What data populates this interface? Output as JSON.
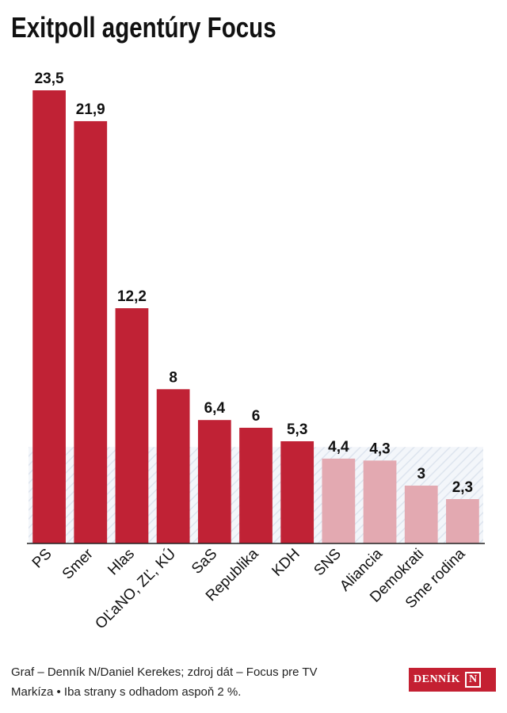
{
  "title": "Exitpoll agentúry Focus",
  "chart_data": {
    "type": "bar",
    "title": "Exitpoll agentúry Focus",
    "categories": [
      "PS",
      "Smer",
      "Hlas",
      "OĽaNO, ZĽ, KÚ",
      "SaS",
      "Republika",
      "KDH",
      "SNS",
      "Aliancia",
      "Demokrati",
      "Sme rodina"
    ],
    "values": [
      23.5,
      21.9,
      12.2,
      8,
      6.4,
      6,
      5.3,
      4.4,
      4.3,
      3,
      2.3
    ],
    "value_labels": [
      "23,5",
      "21,9",
      "12,2",
      "8",
      "6,4",
      "6",
      "5,3",
      "4,4",
      "4,3",
      "3",
      "2,3"
    ],
    "below_threshold": [
      false,
      false,
      false,
      false,
      false,
      false,
      false,
      true,
      true,
      true,
      true
    ],
    "threshold": 5,
    "ylim": [
      0,
      23.5
    ],
    "grid": false,
    "colors": {
      "bar": "#c02235",
      "bar_below": "#e3a9b1",
      "threshold_band": "#e6ecf3"
    }
  },
  "footer": {
    "line1": "Graf – Denník N/Daniel Kerekes; zdroj dát – Focus pre TV",
    "line2": "Markíza • Iba strany s odhadom aspoň 2 %."
  },
  "logo": {
    "text": "DENNÍK",
    "mark": "N"
  }
}
